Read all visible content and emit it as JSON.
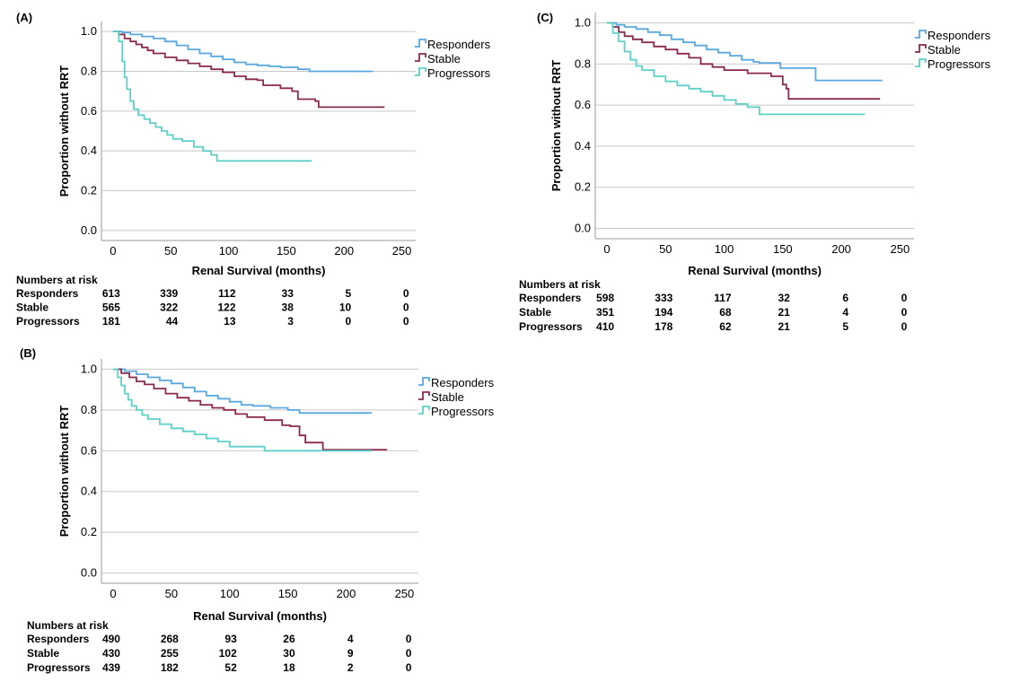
{
  "colors": {
    "Responders": "#5aa8e0",
    "Stable": "#8b2a4e",
    "Progressors": "#5ed0c8"
  },
  "chart_data": [
    {
      "type": "line",
      "panel": "(A)",
      "xlabel": "Renal Survival (months)",
      "ylabel": "Proportion without RRT",
      "xlim": [
        -10,
        262
      ],
      "ylim": [
        -0.05,
        1.05
      ],
      "xticks": [
        0,
        50,
        100,
        150,
        200,
        250
      ],
      "yticks": [
        0.0,
        0.2,
        0.4,
        0.6,
        0.8,
        1.0
      ],
      "grid": "horizontal",
      "legend": "top-right",
      "series": [
        {
          "name": "Responders",
          "points": [
            [
              0,
              1.0
            ],
            [
              8,
              0.995
            ],
            [
              15,
              0.985
            ],
            [
              25,
              0.975
            ],
            [
              35,
              0.965
            ],
            [
              45,
              0.95
            ],
            [
              55,
              0.93
            ],
            [
              65,
              0.91
            ],
            [
              75,
              0.89
            ],
            [
              85,
              0.875
            ],
            [
              95,
              0.86
            ],
            [
              105,
              0.845
            ],
            [
              115,
              0.835
            ],
            [
              125,
              0.83
            ],
            [
              135,
              0.825
            ],
            [
              145,
              0.82
            ],
            [
              160,
              0.81
            ],
            [
              170,
              0.8
            ],
            [
              225,
              0.8
            ]
          ]
        },
        {
          "name": "Stable",
          "points": [
            [
              0,
              1.0
            ],
            [
              5,
              0.985
            ],
            [
              10,
              0.965
            ],
            [
              15,
              0.95
            ],
            [
              20,
              0.935
            ],
            [
              25,
              0.92
            ],
            [
              30,
              0.905
            ],
            [
              35,
              0.89
            ],
            [
              45,
              0.87
            ],
            [
              55,
              0.855
            ],
            [
              65,
              0.84
            ],
            [
              75,
              0.825
            ],
            [
              85,
              0.81
            ],
            [
              95,
              0.795
            ],
            [
              105,
              0.775
            ],
            [
              115,
              0.76
            ],
            [
              125,
              0.755
            ],
            [
              130,
              0.73
            ],
            [
              145,
              0.715
            ],
            [
              155,
              0.7
            ],
            [
              160,
              0.66
            ],
            [
              175,
              0.65
            ],
            [
              178,
              0.62
            ],
            [
              235,
              0.62
            ]
          ]
        },
        {
          "name": "Progressors",
          "points": [
            [
              0,
              1.0
            ],
            [
              5,
              0.95
            ],
            [
              8,
              0.85
            ],
            [
              10,
              0.77
            ],
            [
              12,
              0.71
            ],
            [
              15,
              0.65
            ],
            [
              18,
              0.61
            ],
            [
              22,
              0.58
            ],
            [
              27,
              0.56
            ],
            [
              32,
              0.54
            ],
            [
              37,
              0.52
            ],
            [
              42,
              0.5
            ],
            [
              47,
              0.48
            ],
            [
              52,
              0.46
            ],
            [
              60,
              0.45
            ],
            [
              70,
              0.42
            ],
            [
              78,
              0.4
            ],
            [
              85,
              0.38
            ],
            [
              90,
              0.35
            ],
            [
              172,
              0.35
            ]
          ]
        }
      ]
    },
    {
      "type": "line",
      "panel": "(B)",
      "xlabel": "Renal Survival (months)",
      "ylabel": "Proportion without RRT",
      "xlim": [
        -10,
        262
      ],
      "ylim": [
        -0.05,
        1.05
      ],
      "xticks": [
        0,
        50,
        100,
        150,
        200,
        250
      ],
      "yticks": [
        0.0,
        0.2,
        0.4,
        0.6,
        0.8,
        1.0
      ],
      "grid": "horizontal",
      "legend": "top-right",
      "series": [
        {
          "name": "Responders",
          "points": [
            [
              0,
              1.0
            ],
            [
              10,
              0.99
            ],
            [
              20,
              0.975
            ],
            [
              30,
              0.96
            ],
            [
              40,
              0.945
            ],
            [
              50,
              0.93
            ],
            [
              60,
              0.91
            ],
            [
              70,
              0.89
            ],
            [
              80,
              0.87
            ],
            [
              90,
              0.855
            ],
            [
              100,
              0.84
            ],
            [
              110,
              0.825
            ],
            [
              120,
              0.82
            ],
            [
              135,
              0.81
            ],
            [
              150,
              0.8
            ],
            [
              160,
              0.785
            ],
            [
              222,
              0.785
            ]
          ]
        },
        {
          "name": "Stable",
          "points": [
            [
              0,
              1.0
            ],
            [
              7,
              0.98
            ],
            [
              14,
              0.96
            ],
            [
              20,
              0.94
            ],
            [
              27,
              0.925
            ],
            [
              35,
              0.905
            ],
            [
              45,
              0.88
            ],
            [
              55,
              0.86
            ],
            [
              65,
              0.845
            ],
            [
              75,
              0.825
            ],
            [
              85,
              0.81
            ],
            [
              95,
              0.8
            ],
            [
              105,
              0.78
            ],
            [
              115,
              0.765
            ],
            [
              130,
              0.75
            ],
            [
              145,
              0.725
            ],
            [
              152,
              0.72
            ],
            [
              160,
              0.675
            ],
            [
              165,
              0.64
            ],
            [
              175,
              0.64
            ],
            [
              180,
              0.605
            ],
            [
              235,
              0.605
            ]
          ]
        },
        {
          "name": "Progressors",
          "points": [
            [
              0,
              1.0
            ],
            [
              4,
              0.96
            ],
            [
              7,
              0.92
            ],
            [
              10,
              0.88
            ],
            [
              13,
              0.85
            ],
            [
              16,
              0.82
            ],
            [
              20,
              0.8
            ],
            [
              25,
              0.775
            ],
            [
              30,
              0.755
            ],
            [
              40,
              0.73
            ],
            [
              50,
              0.71
            ],
            [
              60,
              0.695
            ],
            [
              70,
              0.68
            ],
            [
              80,
              0.66
            ],
            [
              90,
              0.645
            ],
            [
              100,
              0.62
            ],
            [
              130,
              0.6
            ],
            [
              222,
              0.6
            ]
          ]
        }
      ]
    },
    {
      "type": "line",
      "panel": "(C)",
      "xlabel": "Renal Survival (months)",
      "ylabel": "Proportion without RRT",
      "xlim": [
        -10,
        262
      ],
      "ylim": [
        -0.05,
        1.05
      ],
      "xticks": [
        0,
        50,
        100,
        150,
        200,
        250
      ],
      "yticks": [
        0.0,
        0.2,
        0.4,
        0.6,
        0.8,
        1.0
      ],
      "grid": "horizontal",
      "legend": "top-right",
      "series": [
        {
          "name": "Responders",
          "points": [
            [
              0,
              1.0
            ],
            [
              8,
              0.99
            ],
            [
              15,
              0.98
            ],
            [
              25,
              0.97
            ],
            [
              35,
              0.955
            ],
            [
              45,
              0.94
            ],
            [
              55,
              0.92
            ],
            [
              65,
              0.905
            ],
            [
              75,
              0.89
            ],
            [
              85,
              0.87
            ],
            [
              95,
              0.855
            ],
            [
              105,
              0.84
            ],
            [
              115,
              0.82
            ],
            [
              125,
              0.81
            ],
            [
              130,
              0.805
            ],
            [
              148,
              0.78
            ],
            [
              175,
              0.78
            ],
            [
              178,
              0.72
            ],
            [
              235,
              0.72
            ]
          ]
        },
        {
          "name": "Stable",
          "points": [
            [
              0,
              1.0
            ],
            [
              5,
              0.98
            ],
            [
              10,
              0.955
            ],
            [
              15,
              0.935
            ],
            [
              22,
              0.92
            ],
            [
              30,
              0.905
            ],
            [
              40,
              0.885
            ],
            [
              50,
              0.87
            ],
            [
              60,
              0.85
            ],
            [
              70,
              0.83
            ],
            [
              80,
              0.8
            ],
            [
              90,
              0.785
            ],
            [
              100,
              0.77
            ],
            [
              120,
              0.755
            ],
            [
              140,
              0.74
            ],
            [
              150,
              0.7
            ],
            [
              153,
              0.68
            ],
            [
              155,
              0.63
            ],
            [
              233,
              0.63
            ]
          ]
        },
        {
          "name": "Progressors",
          "points": [
            [
              0,
              1.0
            ],
            [
              5,
              0.95
            ],
            [
              10,
              0.91
            ],
            [
              15,
              0.86
            ],
            [
              20,
              0.82
            ],
            [
              25,
              0.79
            ],
            [
              30,
              0.77
            ],
            [
              40,
              0.74
            ],
            [
              50,
              0.715
            ],
            [
              60,
              0.695
            ],
            [
              70,
              0.68
            ],
            [
              80,
              0.665
            ],
            [
              90,
              0.645
            ],
            [
              100,
              0.625
            ],
            [
              110,
              0.605
            ],
            [
              120,
              0.59
            ],
            [
              130,
              0.555
            ],
            [
              220,
              0.555
            ]
          ]
        }
      ]
    }
  ],
  "panels": [
    {
      "label": "(A)",
      "risk": {
        "title": "Numbers at risk",
        "rows": [
          {
            "name": "Responders",
            "values": [
              "613",
              "339",
              "112",
              "33",
              "5",
              "0"
            ]
          },
          {
            "name": "Stable",
            "values": [
              "565",
              "322",
              "122",
              "38",
              "10",
              "0"
            ]
          },
          {
            "name": "Progressors",
            "values": [
              "181",
              "44",
              "13",
              "3",
              "0",
              "0"
            ]
          }
        ]
      }
    },
    {
      "label": "(B)",
      "risk": {
        "title": "Numbers at risk",
        "rows": [
          {
            "name": "Responders",
            "values": [
              "490",
              "268",
              "93",
              "26",
              "4",
              "0"
            ]
          },
          {
            "name": "Stable",
            "values": [
              "430",
              "255",
              "102",
              "30",
              "9",
              "0"
            ]
          },
          {
            "name": "Progressors",
            "values": [
              "439",
              "182",
              "52",
              "18",
              "2",
              "0"
            ]
          }
        ]
      }
    },
    {
      "label": "(C)",
      "risk": {
        "title": "Numbers at risk",
        "rows": [
          {
            "name": "Responders",
            "values": [
              "598",
              "333",
              "117",
              "32",
              "6",
              "0"
            ]
          },
          {
            "name": "Stable",
            "values": [
              "351",
              "194",
              "68",
              "21",
              "4",
              "0"
            ]
          },
          {
            "name": "Progressors",
            "values": [
              "410",
              "178",
              "62",
              "21",
              "5",
              "0"
            ]
          }
        ]
      }
    }
  ]
}
